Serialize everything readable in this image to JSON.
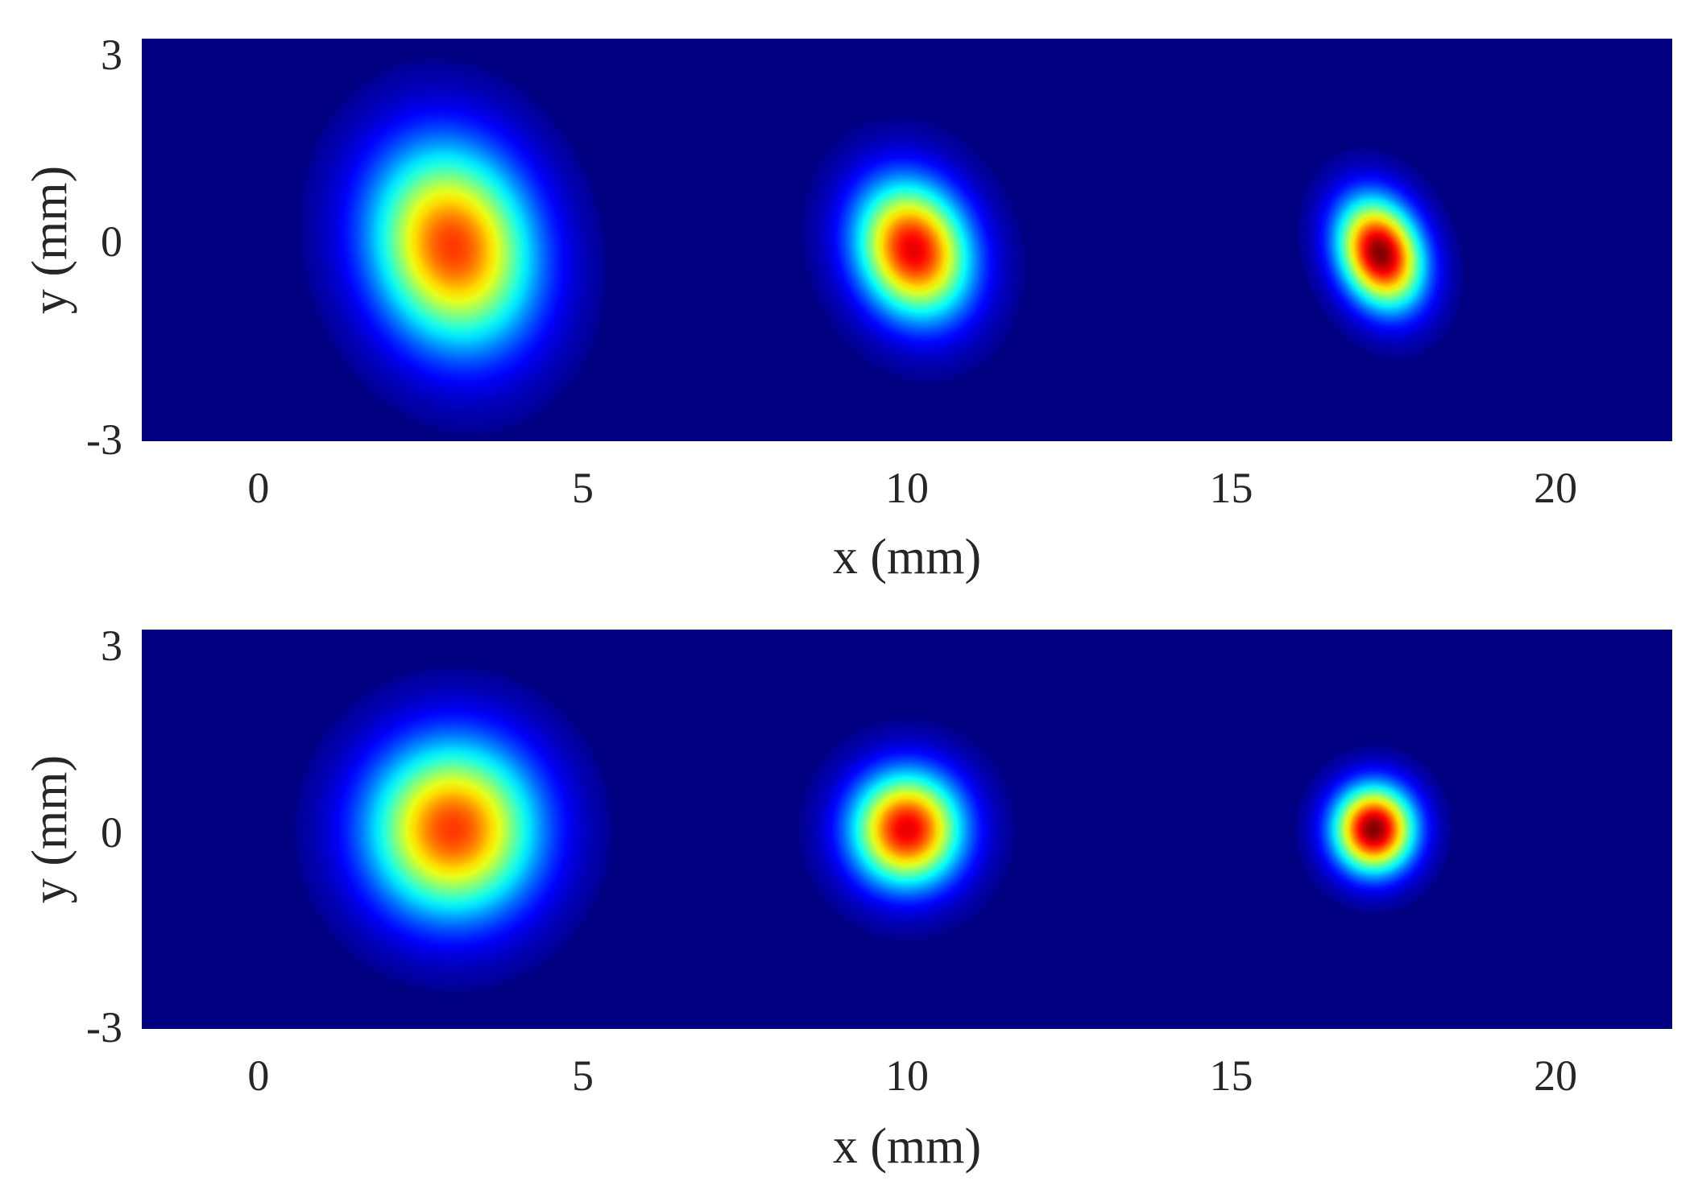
{
  "chart_data": [
    {
      "type": "heatmap",
      "xlabel": "x (mm)",
      "ylabel": "y (mm)",
      "xlim": [
        -1.8,
        21.8
      ],
      "ylim": [
        -3,
        3
      ],
      "xticks": [
        0,
        5,
        10,
        15,
        20
      ],
      "yticks": [
        -3,
        0,
        3
      ],
      "xtick_labels": [
        "0",
        "5",
        "10",
        "15",
        "20"
      ],
      "ytick_labels": [
        "-3",
        "0",
        "3"
      ],
      "colormap": "jet",
      "background_value": 0,
      "spots": [
        {
          "x": 3.0,
          "y": -0.1,
          "sigma_x": 0.9,
          "sigma_y": 1.1,
          "peak": 0.82,
          "rotation_deg": -15
        },
        {
          "x": 10.1,
          "y": -0.15,
          "sigma_x": 0.62,
          "sigma_y": 0.75,
          "peak": 0.9,
          "rotation_deg": -20
        },
        {
          "x": 17.3,
          "y": -0.2,
          "sigma_x": 0.45,
          "sigma_y": 0.6,
          "peak": 1.0,
          "rotation_deg": -20
        }
      ]
    },
    {
      "type": "heatmap",
      "xlabel": "x (mm)",
      "ylabel": "y (mm)",
      "xlim": [
        -1.8,
        21.8
      ],
      "ylim": [
        -3,
        3
      ],
      "xticks": [
        0,
        5,
        10,
        15,
        20
      ],
      "yticks": [
        -3,
        0,
        3
      ],
      "xtick_labels": [
        "0",
        "5",
        "10",
        "15",
        "20"
      ],
      "ytick_labels": [
        "-3",
        "0",
        "3"
      ],
      "colormap": "jet",
      "background_value": 0,
      "spots": [
        {
          "x": 3.0,
          "y": 0.0,
          "sigma_x": 0.95,
          "sigma_y": 0.95,
          "peak": 0.82,
          "rotation_deg": 0
        },
        {
          "x": 10.0,
          "y": 0.0,
          "sigma_x": 0.62,
          "sigma_y": 0.62,
          "peak": 0.9,
          "rotation_deg": 0
        },
        {
          "x": 17.2,
          "y": 0.0,
          "sigma_x": 0.45,
          "sigma_y": 0.47,
          "peak": 1.0,
          "rotation_deg": 0
        }
      ]
    }
  ]
}
